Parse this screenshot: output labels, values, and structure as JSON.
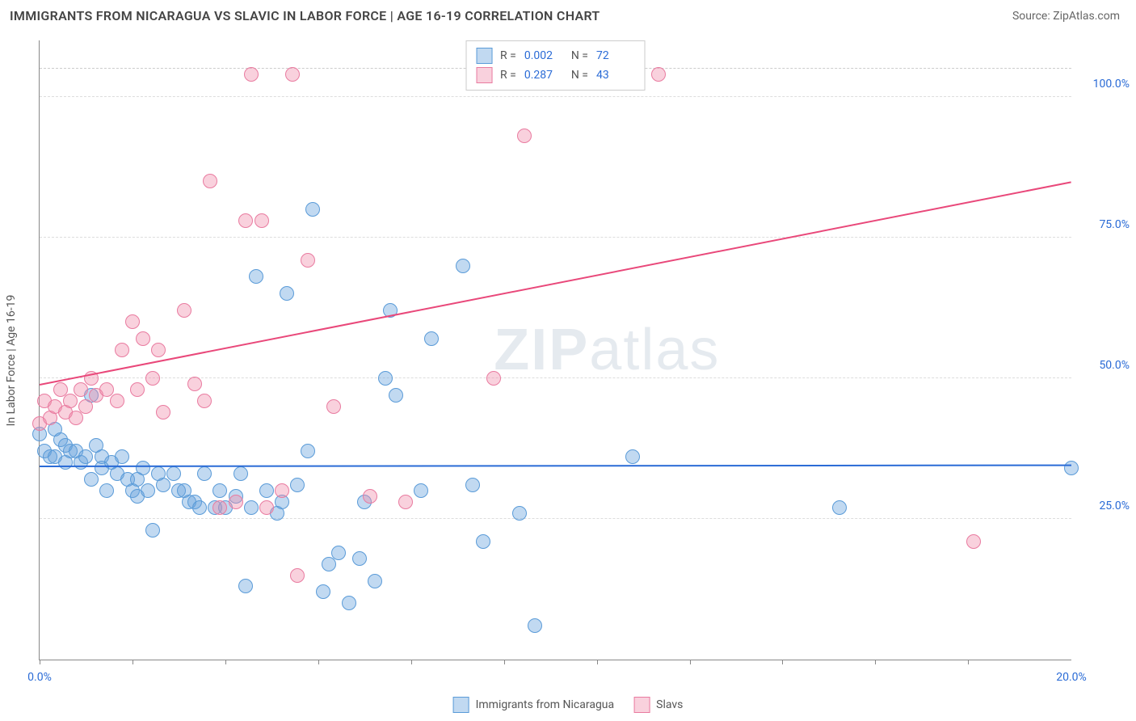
{
  "header": {
    "title": "IMMIGRANTS FROM NICARAGUA VS SLAVIC IN LABOR FORCE | AGE 16-19 CORRELATION CHART",
    "source_prefix": "Source: ",
    "source_name": "ZipAtlas.com"
  },
  "watermark": {
    "bold": "ZIP",
    "rest": "atlas"
  },
  "chart": {
    "type": "scatter",
    "xlim": [
      0,
      20
    ],
    "ylim": [
      0,
      110
    ],
    "xtick_positions": [
      0,
      1.8,
      3.6,
      5.4,
      7.2,
      9.0,
      10.8,
      12.6,
      14.4,
      16.2,
      18.0
    ],
    "xtick_labels_shown": {
      "0": "0.0%",
      "20": "20.0%"
    },
    "ytick_positions": [
      25,
      50,
      75,
      100
    ],
    "ytick_labels": [
      "25.0%",
      "50.0%",
      "75.0%",
      "100.0%"
    ],
    "ylabel": "In Labor Force | Age 16-19",
    "background_color": "#ffffff",
    "grid_color": "#dddddd",
    "series": {
      "nicaragua": {
        "label": "Immigants from Nicaragua",
        "fill": "rgba(100,160,220,0.4)",
        "stroke": "#5a9bd8",
        "marker_radius": 9,
        "R": "0.002",
        "N": "72",
        "trend": {
          "x1": 0,
          "y1": 34.5,
          "x2": 20,
          "y2": 34.7,
          "color": "#2a6bd6",
          "width": 2
        },
        "points": [
          [
            0.0,
            40
          ],
          [
            0.1,
            37
          ],
          [
            0.2,
            36
          ],
          [
            0.3,
            41
          ],
          [
            0.3,
            36
          ],
          [
            0.4,
            39
          ],
          [
            0.5,
            38
          ],
          [
            0.5,
            35
          ],
          [
            0.6,
            37
          ],
          [
            0.7,
            37
          ],
          [
            0.8,
            35
          ],
          [
            0.9,
            36
          ],
          [
            1.0,
            47
          ],
          [
            1.0,
            32
          ],
          [
            1.1,
            38
          ],
          [
            1.2,
            34
          ],
          [
            1.2,
            36
          ],
          [
            1.3,
            30
          ],
          [
            1.4,
            35
          ],
          [
            1.5,
            33
          ],
          [
            1.6,
            36
          ],
          [
            1.7,
            32
          ],
          [
            1.8,
            30
          ],
          [
            1.9,
            32
          ],
          [
            1.9,
            29
          ],
          [
            2.0,
            34
          ],
          [
            2.1,
            30
          ],
          [
            2.2,
            23
          ],
          [
            2.3,
            33
          ],
          [
            2.4,
            31
          ],
          [
            2.6,
            33
          ],
          [
            2.7,
            30
          ],
          [
            2.8,
            30
          ],
          [
            2.9,
            28
          ],
          [
            3.0,
            28
          ],
          [
            3.1,
            27
          ],
          [
            3.2,
            33
          ],
          [
            3.4,
            27
          ],
          [
            3.5,
            30
          ],
          [
            3.6,
            27
          ],
          [
            3.8,
            29
          ],
          [
            3.9,
            33
          ],
          [
            4.0,
            13
          ],
          [
            4.1,
            27
          ],
          [
            4.2,
            68
          ],
          [
            4.4,
            30
          ],
          [
            4.6,
            26
          ],
          [
            4.7,
            28
          ],
          [
            4.8,
            65
          ],
          [
            5.0,
            31
          ],
          [
            5.2,
            37
          ],
          [
            5.3,
            80
          ],
          [
            5.5,
            12
          ],
          [
            5.6,
            17
          ],
          [
            5.8,
            19
          ],
          [
            6.0,
            10
          ],
          [
            6.2,
            18
          ],
          [
            6.3,
            28
          ],
          [
            6.5,
            14
          ],
          [
            6.7,
            50
          ],
          [
            6.8,
            62
          ],
          [
            6.9,
            47
          ],
          [
            7.4,
            30
          ],
          [
            7.6,
            57
          ],
          [
            8.2,
            70
          ],
          [
            8.4,
            31
          ],
          [
            8.6,
            21
          ],
          [
            9.3,
            26
          ],
          [
            9.6,
            6
          ],
          [
            11.5,
            36
          ],
          [
            15.5,
            27
          ],
          [
            20.0,
            34
          ]
        ]
      },
      "slavs": {
        "label": "Slavs",
        "fill": "rgba(240,140,170,0.4)",
        "stroke": "#e97ba0",
        "marker_radius": 9,
        "R": "0.287",
        "N": "43",
        "trend": {
          "x1": 0,
          "y1": 49,
          "x2": 20,
          "y2": 85,
          "color": "#e9487a",
          "width": 2
        },
        "points": [
          [
            0.0,
            42
          ],
          [
            0.1,
            46
          ],
          [
            0.2,
            43
          ],
          [
            0.3,
            45
          ],
          [
            0.4,
            48
          ],
          [
            0.5,
            44
          ],
          [
            0.6,
            46
          ],
          [
            0.7,
            43
          ],
          [
            0.8,
            48
          ],
          [
            0.9,
            45
          ],
          [
            1.0,
            50
          ],
          [
            1.1,
            47
          ],
          [
            1.3,
            48
          ],
          [
            1.5,
            46
          ],
          [
            1.6,
            55
          ],
          [
            1.8,
            60
          ],
          [
            1.9,
            48
          ],
          [
            2.0,
            57
          ],
          [
            2.2,
            50
          ],
          [
            2.3,
            55
          ],
          [
            2.4,
            44
          ],
          [
            2.8,
            62
          ],
          [
            3.0,
            49
          ],
          [
            3.2,
            46
          ],
          [
            3.3,
            85
          ],
          [
            3.5,
            27
          ],
          [
            3.8,
            28
          ],
          [
            4.0,
            78
          ],
          [
            4.1,
            104
          ],
          [
            4.3,
            78
          ],
          [
            4.4,
            27
          ],
          [
            4.7,
            30
          ],
          [
            4.9,
            104
          ],
          [
            5.0,
            15
          ],
          [
            5.2,
            71
          ],
          [
            5.7,
            45
          ],
          [
            6.4,
            29
          ],
          [
            7.1,
            28
          ],
          [
            8.8,
            50
          ],
          [
            9.4,
            93
          ],
          [
            10.0,
            104
          ],
          [
            12.0,
            104
          ],
          [
            18.1,
            21
          ]
        ]
      }
    },
    "legend_top": {
      "rows": [
        {
          "swatch_fill": "rgba(100,160,220,0.4)",
          "swatch_stroke": "#5a9bd8",
          "R_label": "R =",
          "R_val": "0.002",
          "N_label": "N =",
          "N_val": "72"
        },
        {
          "swatch_fill": "rgba(240,140,170,0.4)",
          "swatch_stroke": "#e97ba0",
          "R_label": "R =",
          "R_val": "0.287",
          "N_label": "N =",
          "N_val": "43"
        }
      ]
    },
    "legend_bottom": [
      {
        "swatch_fill": "rgba(100,160,220,0.4)",
        "swatch_stroke": "#5a9bd8",
        "label": "Immigrants from Nicaragua"
      },
      {
        "swatch_fill": "rgba(240,140,170,0.4)",
        "swatch_stroke": "#e97ba0",
        "label": "Slavs"
      }
    ]
  }
}
